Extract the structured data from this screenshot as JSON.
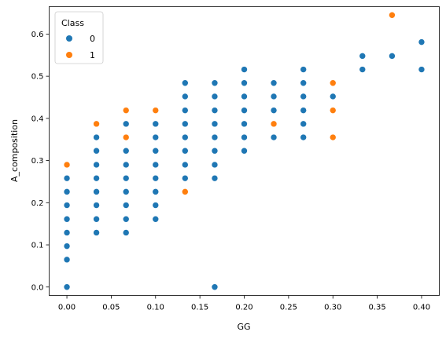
{
  "chart_data": {
    "type": "scatter",
    "xlabel": "GG",
    "ylabel": "A_composition",
    "xlim": [
      -0.02,
      0.42
    ],
    "ylim": [
      -0.02,
      0.665
    ],
    "xticks": [
      "0.00",
      "0.05",
      "0.10",
      "0.15",
      "0.20",
      "0.25",
      "0.30",
      "0.35",
      "0.40"
    ],
    "yticks": [
      "0.0",
      "0.1",
      "0.2",
      "0.3",
      "0.4",
      "0.5",
      "0.6"
    ],
    "grid": false,
    "legend": {
      "title": "Class",
      "placement": "top-left"
    },
    "series": [
      {
        "name": "0",
        "color": "#1f77b4",
        "points": [
          [
            0.0,
            0.0
          ],
          [
            0.0,
            0.065
          ],
          [
            0.0,
            0.097
          ],
          [
            0.0,
            0.129
          ],
          [
            0.0,
            0.161
          ],
          [
            0.0,
            0.194
          ],
          [
            0.0,
            0.226
          ],
          [
            0.0,
            0.258
          ],
          [
            0.0333,
            0.129
          ],
          [
            0.0333,
            0.161
          ],
          [
            0.0333,
            0.194
          ],
          [
            0.0333,
            0.226
          ],
          [
            0.0333,
            0.258
          ],
          [
            0.0333,
            0.29
          ],
          [
            0.0333,
            0.323
          ],
          [
            0.0333,
            0.355
          ],
          [
            0.0667,
            0.129
          ],
          [
            0.0667,
            0.161
          ],
          [
            0.0667,
            0.194
          ],
          [
            0.0667,
            0.226
          ],
          [
            0.0667,
            0.258
          ],
          [
            0.0667,
            0.29
          ],
          [
            0.0667,
            0.323
          ],
          [
            0.0667,
            0.387
          ],
          [
            0.1,
            0.161
          ],
          [
            0.1,
            0.194
          ],
          [
            0.1,
            0.226
          ],
          [
            0.1,
            0.258
          ],
          [
            0.1,
            0.29
          ],
          [
            0.1,
            0.323
          ],
          [
            0.1,
            0.355
          ],
          [
            0.1,
            0.387
          ],
          [
            0.1333,
            0.258
          ],
          [
            0.1333,
            0.29
          ],
          [
            0.1333,
            0.323
          ],
          [
            0.1333,
            0.355
          ],
          [
            0.1333,
            0.387
          ],
          [
            0.1333,
            0.419
          ],
          [
            0.1333,
            0.452
          ],
          [
            0.1333,
            0.484
          ],
          [
            0.1667,
            0.0
          ],
          [
            0.1667,
            0.258
          ],
          [
            0.1667,
            0.29
          ],
          [
            0.1667,
            0.323
          ],
          [
            0.1667,
            0.355
          ],
          [
            0.1667,
            0.387
          ],
          [
            0.1667,
            0.419
          ],
          [
            0.1667,
            0.452
          ],
          [
            0.1667,
            0.484
          ],
          [
            0.2,
            0.323
          ],
          [
            0.2,
            0.355
          ],
          [
            0.2,
            0.387
          ],
          [
            0.2,
            0.419
          ],
          [
            0.2,
            0.452
          ],
          [
            0.2,
            0.484
          ],
          [
            0.2,
            0.516
          ],
          [
            0.2333,
            0.355
          ],
          [
            0.2333,
            0.419
          ],
          [
            0.2333,
            0.452
          ],
          [
            0.2333,
            0.484
          ],
          [
            0.2667,
            0.355
          ],
          [
            0.2667,
            0.387
          ],
          [
            0.2667,
            0.419
          ],
          [
            0.2667,
            0.452
          ],
          [
            0.2667,
            0.484
          ],
          [
            0.2667,
            0.516
          ],
          [
            0.3,
            0.452
          ],
          [
            0.3333,
            0.516
          ],
          [
            0.3333,
            0.548
          ],
          [
            0.3667,
            0.548
          ],
          [
            0.4,
            0.516
          ],
          [
            0.4,
            0.581
          ]
        ]
      },
      {
        "name": "1",
        "color": "#ff7f0e",
        "points": [
          [
            0.0,
            0.29
          ],
          [
            0.0333,
            0.387
          ],
          [
            0.0667,
            0.355
          ],
          [
            0.0667,
            0.419
          ],
          [
            0.1,
            0.419
          ],
          [
            0.1333,
            0.226
          ],
          [
            0.2333,
            0.387
          ],
          [
            0.3,
            0.355
          ],
          [
            0.3,
            0.419
          ],
          [
            0.3,
            0.484
          ],
          [
            0.3667,
            0.645
          ]
        ]
      }
    ]
  }
}
